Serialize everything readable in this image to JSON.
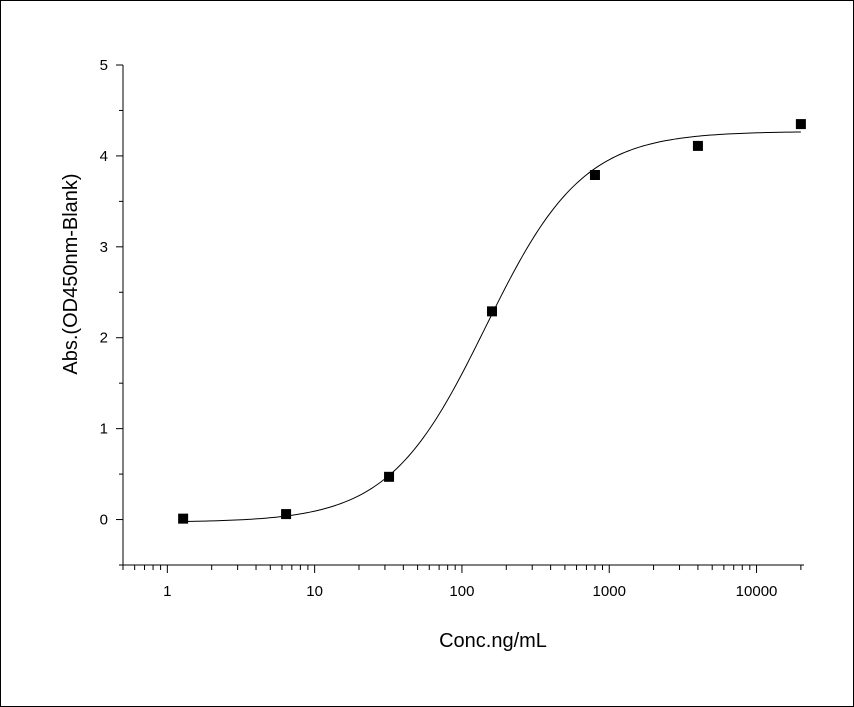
{
  "chart_data": {
    "type": "scatter",
    "title": "",
    "xlabel": "Conc.ng/mL",
    "ylabel": "Abs.(OD450nm-Blank)",
    "x_scale": "log",
    "xlim": [
      0.5,
      21000
    ],
    "ylim": [
      -0.5,
      5
    ],
    "x_ticks": [
      {
        "value": 1,
        "label": "1"
      },
      {
        "value": 10,
        "label": "10"
      },
      {
        "value": 100,
        "label": "100"
      },
      {
        "value": 1000,
        "label": "1000"
      },
      {
        "value": 10000,
        "label": "10000"
      }
    ],
    "y_ticks": [
      {
        "value": 0,
        "label": "0"
      },
      {
        "value": 1,
        "label": "1"
      },
      {
        "value": 2,
        "label": "2"
      },
      {
        "value": 3,
        "label": "3"
      },
      {
        "value": 4,
        "label": "4"
      },
      {
        "value": 5,
        "label": "5"
      }
    ],
    "grid": false,
    "legend": "none",
    "series": [
      {
        "marker": "square",
        "color": "#000000",
        "x": [
          1.28,
          6.4,
          32,
          160,
          800,
          4000,
          20000
        ],
        "y": [
          0.01,
          0.06,
          0.47,
          2.29,
          3.79,
          4.11,
          4.35
        ]
      }
    ],
    "fit_curve": {
      "model": "4PL",
      "bottom": -0.03,
      "top": 4.27,
      "ec50": 145,
      "hill": 1.32,
      "x_range": [
        1.28,
        20000
      ],
      "color": "#000000"
    }
  }
}
